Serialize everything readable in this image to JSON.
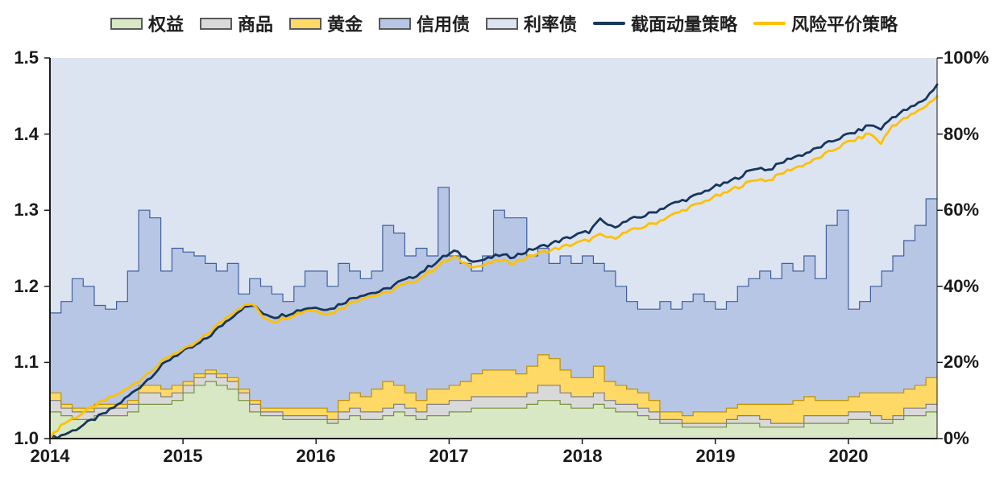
{
  "legend": [
    {
      "label": "权益"
    },
    {
      "label": "商品"
    },
    {
      "label": "黄金"
    },
    {
      "label": "信用债"
    },
    {
      "label": "利率债"
    },
    {
      "label": "截面动量策略"
    },
    {
      "label": "风险平价策略"
    }
  ],
  "chart_data": {
    "type": "combo: stacked step-area weights (right axis, %) + two NAV lines (left axis)",
    "x": {
      "start": "2014-01",
      "end": "2020-08",
      "points": 80,
      "unit": "month"
    },
    "x_ticks": [
      "2014",
      "2015",
      "2016",
      "2017",
      "2018",
      "2019",
      "2020"
    ],
    "left_axis": {
      "min": 1.0,
      "max": 1.5,
      "ticks": [
        "1.5",
        "1.4",
        "1.3",
        "1.2",
        "1.1",
        "1.0"
      ]
    },
    "right_axis": {
      "min": 0,
      "max": 100,
      "ticks": [
        "100%",
        "80%",
        "60%",
        "40%",
        "20%",
        "0%"
      ]
    },
    "grid": false,
    "legend_position": "top",
    "areas": [
      {
        "name": "equity",
        "label": "权益",
        "fill": "#d8e8c4",
        "stroke": "#76923c",
        "axis": "right",
        "values": [
          7,
          6,
          5,
          5,
          6,
          6,
          6,
          7,
          9,
          9,
          9,
          10,
          12,
          14,
          15,
          14,
          13,
          10,
          7,
          6,
          6,
          5,
          5,
          5,
          5,
          4,
          5,
          6,
          5,
          5,
          6,
          7,
          6,
          5,
          6,
          6,
          7,
          7,
          8,
          8,
          8,
          8,
          8,
          9,
          10,
          10,
          9,
          8,
          8,
          9,
          8,
          7,
          7,
          6,
          5,
          4,
          4,
          3,
          3,
          3,
          3,
          4,
          4,
          4,
          3,
          3,
          3,
          3,
          4,
          4,
          4,
          4,
          5,
          5,
          4,
          4,
          5,
          6,
          6,
          7
        ]
      },
      {
        "name": "commodity",
        "label": "商品",
        "fill": "#d9d9d9",
        "stroke": "#7f7f7f",
        "axis": "right",
        "values": [
          3,
          2,
          2,
          2,
          2,
          2,
          2,
          2,
          3,
          3,
          2,
          2,
          2,
          2,
          2,
          2,
          2,
          2,
          2,
          1,
          1,
          1,
          1,
          1,
          1,
          1,
          2,
          2,
          2,
          2,
          2,
          2,
          2,
          2,
          3,
          3,
          3,
          3,
          3,
          3,
          3,
          3,
          3,
          3,
          4,
          4,
          3,
          3,
          3,
          3,
          2,
          2,
          2,
          2,
          2,
          1,
          1,
          1,
          1,
          1,
          1,
          1,
          2,
          2,
          2,
          1,
          1,
          1,
          2,
          2,
          2,
          2,
          2,
          2,
          2,
          1,
          1,
          2,
          2,
          2
        ]
      },
      {
        "name": "gold",
        "label": "黄金",
        "fill": "#ffd966",
        "stroke": "#bf9000",
        "axis": "right",
        "values": [
          2,
          1,
          1,
          1,
          1,
          1,
          1,
          1,
          2,
          2,
          2,
          2,
          1,
          1,
          1,
          1,
          1,
          1,
          1,
          1,
          1,
          2,
          2,
          2,
          2,
          2,
          3,
          4,
          4,
          6,
          7,
          5,
          4,
          3,
          4,
          4,
          4,
          5,
          6,
          7,
          7,
          7,
          6,
          7,
          8,
          7,
          6,
          5,
          5,
          7,
          5,
          5,
          4,
          4,
          3,
          2,
          2,
          2,
          3,
          3,
          3,
          3,
          3,
          3,
          4,
          5,
          5,
          6,
          5,
          4,
          4,
          4,
          4,
          5,
          6,
          7,
          6,
          5,
          6,
          7
        ]
      },
      {
        "name": "credit-bond",
        "label": "信用债",
        "fill": "#b7c6e4",
        "stroke": "#3f5f9f",
        "axis": "right",
        "values": [
          21,
          27,
          34,
          32,
          26,
          25,
          27,
          34,
          46,
          44,
          31,
          36,
          34,
          31,
          28,
          27,
          30,
          25,
          32,
          32,
          30,
          28,
          32,
          36,
          36,
          33,
          36,
          32,
          31,
          31,
          41,
          40,
          36,
          40,
          35,
          53,
          34,
          31,
          27,
          30,
          42,
          40,
          41,
          29,
          28,
          25,
          30,
          30,
          32,
          27,
          29,
          26,
          23,
          22,
          24,
          29,
          27,
          30,
          31,
          29,
          27,
          28,
          31,
          33,
          35,
          33,
          37,
          34,
          37,
          32,
          46,
          50,
          23,
          24,
          28,
          32,
          36,
          39,
          42,
          47
        ]
      },
      {
        "name": "rate-bond",
        "label": "利率债",
        "fill": "#dce4f2",
        "stroke": "none",
        "axis": "right",
        "values": [
          67,
          64,
          58,
          60,
          65,
          66,
          64,
          56,
          40,
          42,
          56,
          50,
          51,
          52,
          54,
          56,
          54,
          62,
          58,
          60,
          62,
          64,
          60,
          56,
          56,
          60,
          54,
          56,
          58,
          56,
          44,
          46,
          52,
          50,
          52,
          34,
          52,
          54,
          56,
          52,
          40,
          42,
          42,
          52,
          50,
          54,
          52,
          54,
          52,
          54,
          56,
          60,
          64,
          66,
          66,
          64,
          66,
          64,
          62,
          64,
          66,
          64,
          60,
          58,
          56,
          58,
          54,
          56,
          52,
          58,
          44,
          40,
          66,
          64,
          60,
          56,
          52,
          48,
          44,
          37
        ]
      }
    ],
    "lines": [
      {
        "name": "momentum",
        "label": "截面动量策略",
        "color": "#17365d",
        "axis": "left",
        "width": 2.8,
        "values": [
          1.0,
          1.004,
          1.01,
          1.018,
          1.026,
          1.034,
          1.044,
          1.056,
          1.068,
          1.082,
          1.096,
          1.108,
          1.115,
          1.122,
          1.132,
          1.145,
          1.158,
          1.17,
          1.175,
          1.165,
          1.16,
          1.163,
          1.168,
          1.172,
          1.172,
          1.17,
          1.178,
          1.185,
          1.19,
          1.192,
          1.196,
          1.205,
          1.21,
          1.218,
          1.228,
          1.238,
          1.246,
          1.238,
          1.233,
          1.236,
          1.241,
          1.239,
          1.243,
          1.249,
          1.253,
          1.258,
          1.263,
          1.268,
          1.272,
          1.287,
          1.278,
          1.283,
          1.289,
          1.293,
          1.299,
          1.306,
          1.311,
          1.316,
          1.322,
          1.33,
          1.334,
          1.341,
          1.349,
          1.356,
          1.353,
          1.361,
          1.369,
          1.373,
          1.379,
          1.386,
          1.393,
          1.399,
          1.404,
          1.412,
          1.407,
          1.422,
          1.43,
          1.437,
          1.447,
          1.465
        ]
      },
      {
        "name": "risk-parity",
        "label": "风险平价策略",
        "color": "#ffc000",
        "axis": "left",
        "width": 2.8,
        "values": [
          1.0,
          1.018,
          1.026,
          1.034,
          1.043,
          1.051,
          1.058,
          1.066,
          1.077,
          1.09,
          1.101,
          1.112,
          1.117,
          1.125,
          1.137,
          1.15,
          1.163,
          1.173,
          1.177,
          1.16,
          1.154,
          1.159,
          1.164,
          1.169,
          1.167,
          1.164,
          1.172,
          1.18,
          1.186,
          1.188,
          1.191,
          1.199,
          1.204,
          1.211,
          1.221,
          1.231,
          1.238,
          1.23,
          1.226,
          1.229,
          1.234,
          1.231,
          1.235,
          1.241,
          1.245,
          1.249,
          1.253,
          1.257,
          1.261,
          1.267,
          1.263,
          1.269,
          1.274,
          1.279,
          1.284,
          1.291,
          1.297,
          1.304,
          1.309,
          1.317,
          1.321,
          1.329,
          1.335,
          1.341,
          1.339,
          1.347,
          1.354,
          1.359,
          1.365,
          1.373,
          1.381,
          1.389,
          1.394,
          1.401,
          1.388,
          1.411,
          1.419,
          1.427,
          1.437,
          1.45
        ]
      }
    ],
    "axis_color": "#1a1a1a"
  }
}
